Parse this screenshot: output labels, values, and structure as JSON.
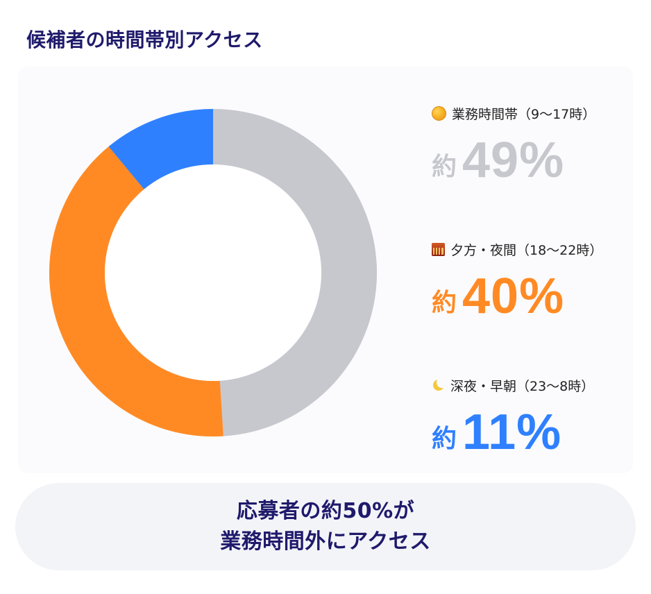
{
  "page": {
    "title": "候補者の時間帯別アクセス"
  },
  "colors": {
    "title": "#1f1a6b",
    "business_hours": "#c7c8ce",
    "evening_night": "#ff8a24",
    "late_night_early_morning": "#2f80ff",
    "chart_track": "#d8d9df",
    "callout_background": "#f3f4f8"
  },
  "chart_data": {
    "type": "pie",
    "title": "候補者の時間帯別アクセス",
    "series": [
      {
        "name": "業務時間帯（9〜17時）",
        "prefix": "約",
        "value": 49,
        "display": "49%",
        "icon": "sun-icon",
        "color": "#c7c8ce"
      },
      {
        "name": "夕方・夜間（18〜22時）",
        "prefix": "約",
        "value": 40,
        "display": "40%",
        "icon": "city-dusk-icon",
        "color": "#ff8a24"
      },
      {
        "name": "深夜・早朝（23〜8時）",
        "prefix": "約",
        "value": 11,
        "display": "11%",
        "icon": "crescent-moon-icon",
        "color": "#2f80ff"
      }
    ]
  },
  "callout": {
    "line1": "応募者の約50%が",
    "line2": "業務時間外にアクセス"
  }
}
